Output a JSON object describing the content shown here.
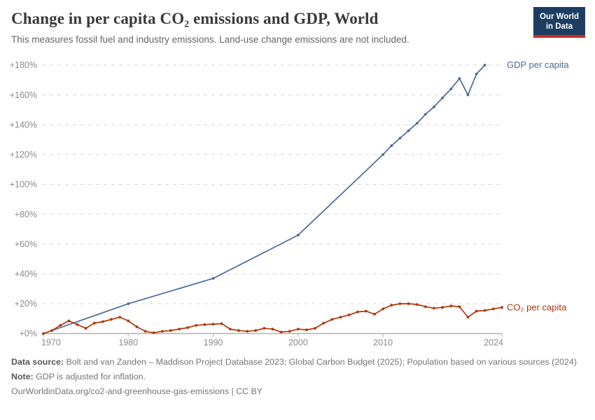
{
  "header": {
    "title": "Change in per capita CO₂ emissions and GDP, World",
    "subtitle": "This measures fossil fuel and industry emissions. Land-use change emissions are not included.",
    "logo": {
      "line1": "Our World",
      "line2": "in Data"
    }
  },
  "chart_data": {
    "type": "line",
    "title": "Change in per capita CO₂ emissions and GDP, World",
    "grid": "horizontal dashed gridlines",
    "legend_position": "labels at right end of each line",
    "x_axis": {
      "range": [
        1970,
        2024
      ],
      "ticks": [
        1970,
        1980,
        1990,
        2000,
        2010,
        2024
      ],
      "tick_labels": [
        "1970",
        "1980",
        "1990",
        "2000",
        "2010",
        "2024"
      ]
    },
    "y_axis": {
      "range": [
        0,
        180
      ],
      "unit": "%",
      "ticks": [
        0,
        20,
        40,
        60,
        80,
        100,
        120,
        140,
        160,
        180
      ],
      "tick_labels": [
        "+0%",
        "+20%",
        "+40%",
        "+60%",
        "+80%",
        "+100%",
        "+120%",
        "+140%",
        "+160%",
        "+180%"
      ]
    },
    "series": [
      {
        "name": "GDP per capita",
        "color": "#4c6a9c",
        "x": [
          1970,
          1980,
          1990,
          2000,
          2010,
          2011,
          2012,
          2013,
          2014,
          2015,
          2016,
          2017,
          2018,
          2019,
          2020,
          2021,
          2022
        ],
        "values": [
          0,
          20,
          37,
          66,
          120,
          126,
          131,
          136,
          141,
          147,
          152,
          158,
          164,
          171,
          160,
          174,
          180
        ]
      },
      {
        "name": "CO₂ per capita",
        "color": "#b13507",
        "x": [
          1970,
          1971,
          1972,
          1973,
          1974,
          1975,
          1976,
          1977,
          1978,
          1979,
          1980,
          1981,
          1982,
          1983,
          1984,
          1985,
          1986,
          1987,
          1988,
          1989,
          1990,
          1991,
          1992,
          1993,
          1994,
          1995,
          1996,
          1997,
          1998,
          1999,
          2000,
          2001,
          2002,
          2003,
          2004,
          2005,
          2006,
          2007,
          2008,
          2009,
          2010,
          2011,
          2012,
          2013,
          2014,
          2015,
          2016,
          2017,
          2018,
          2019,
          2020,
          2021,
          2022,
          2023,
          2024
        ],
        "values": [
          0,
          2,
          5.5,
          8.5,
          6,
          3.5,
          7,
          8,
          9.5,
          11,
          8.5,
          4.5,
          1.5,
          0.5,
          1.5,
          2,
          3,
          4,
          5.5,
          6,
          6.3,
          6.6,
          3,
          2,
          1.5,
          2,
          3.5,
          3,
          1,
          1.5,
          3,
          2.5,
          3.5,
          7,
          9.5,
          11,
          12.5,
          14.5,
          15,
          13,
          16.5,
          19,
          20,
          20,
          19.5,
          18,
          17,
          17.5,
          18.5,
          18,
          11,
          15,
          15.5,
          16.5,
          17.5
        ]
      }
    ]
  },
  "footer": {
    "data_source_label": "Data source:",
    "data_source_text": " Bolt and van Zanden – Maddison Project Database 2023; Global Carbon Budget (2025); Population based on various sources (2024)",
    "note_label": "Note:",
    "note_text": " GDP is adjusted for inflation.",
    "url": "OurWorldinData.org/co2-and-greenhouse-gas-emissions",
    "divider": " | ",
    "license": "CC BY"
  }
}
